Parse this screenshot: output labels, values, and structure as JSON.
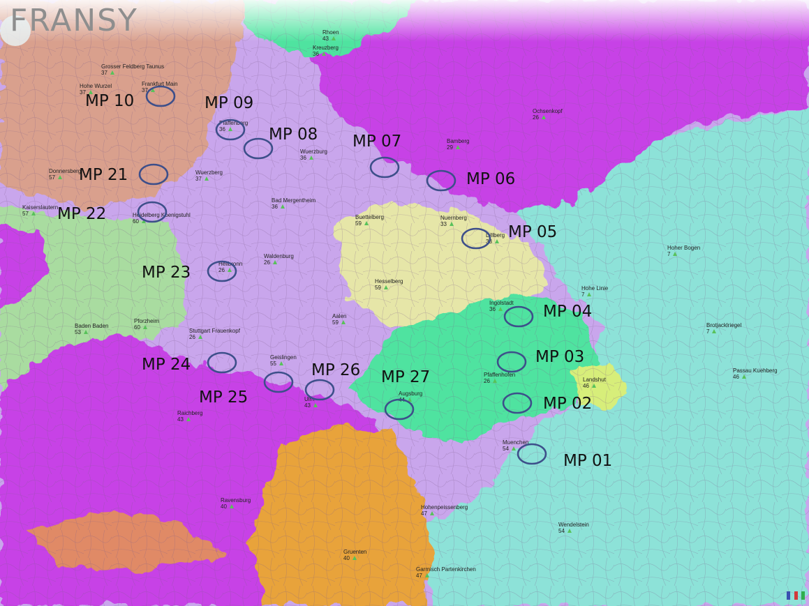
{
  "app": {
    "brand": "FRANSY"
  },
  "colors": {
    "violet_zone": "#c9a6ec",
    "magenta_zone": "#c742e6",
    "cyan_zone": "#8de2d8",
    "green_zone": "#4fe3a0",
    "yellow_zone": "#e6e6a8",
    "orange_zone": "#e8a33b",
    "salmon_zone": "#d9a08d",
    "lightgreen_zone": "#a9dca0",
    "marker_ring": "#3d4f8a",
    "site_triangle": "#58c25a"
  },
  "measure_points": [
    {
      "id": "mp10",
      "label": "MP 10"
    },
    {
      "id": "mp09",
      "label": "MP 09"
    },
    {
      "id": "mp08",
      "label": "MP 08"
    },
    {
      "id": "mp07",
      "label": "MP 07"
    },
    {
      "id": "mp06",
      "label": "MP 06"
    },
    {
      "id": "mp21",
      "label": "MP 21"
    },
    {
      "id": "mp22",
      "label": "MP 22"
    },
    {
      "id": "mp05",
      "label": "MP 05"
    },
    {
      "id": "mp23",
      "label": "MP 23"
    },
    {
      "id": "mp04",
      "label": "MP 04"
    },
    {
      "id": "mp24",
      "label": "MP 24"
    },
    {
      "id": "mp03",
      "label": "MP 03"
    },
    {
      "id": "mp26",
      "label": "MP 26"
    },
    {
      "id": "mp27",
      "label": "MP 27"
    },
    {
      "id": "mp25",
      "label": "MP 25"
    },
    {
      "id": "mp02",
      "label": "MP 02"
    },
    {
      "id": "mp01",
      "label": "MP 01"
    }
  ],
  "sites": [
    {
      "id": "rhoen",
      "name": "Rhoen",
      "ch": "43"
    },
    {
      "id": "kreuzberg",
      "name": "Kreuzberg",
      "ch": "36"
    },
    {
      "id": "feldberg",
      "name": "Grosser Feldberg Taunus",
      "ch": "37"
    },
    {
      "id": "frankfurt",
      "name": "Frankfurt Main",
      "ch": "37"
    },
    {
      "id": "wurzel",
      "name": "Hohe Wurzel",
      "ch": "37"
    },
    {
      "id": "ochsenkopf",
      "name": "Ochsenkopf",
      "ch": "26"
    },
    {
      "id": "pfaffenberg",
      "name": "Pfaffenberg",
      "ch": "36"
    },
    {
      "id": "bamberg",
      "name": "Bamberg",
      "ch": "29"
    },
    {
      "id": "wuerzburg",
      "name": "Wuerzburg",
      "ch": "36"
    },
    {
      "id": "donnersberg",
      "name": "Donnersberg",
      "ch": "57"
    },
    {
      "id": "wuerzberg",
      "name": "Wuerzberg",
      "ch": "37"
    },
    {
      "id": "mergentheim",
      "name": "Bad Mergentheim",
      "ch": "36"
    },
    {
      "id": "kaiserslautern",
      "name": "Kaiserslautern",
      "ch": "57"
    },
    {
      "id": "koenigstuhl",
      "name": "Heidelberg Koenigstuhl",
      "ch": "60"
    },
    {
      "id": "buettelberg",
      "name": "Buettelberg",
      "ch": "59"
    },
    {
      "id": "nuernberg",
      "name": "Nuernberg",
      "ch": "33"
    },
    {
      "id": "dillberg",
      "name": "Dillberg",
      "ch": "33"
    },
    {
      "id": "hoherbogen",
      "name": "Hoher Bogen",
      "ch": "7"
    },
    {
      "id": "heilbronn",
      "name": "Heilbronn",
      "ch": "26"
    },
    {
      "id": "waldenburg",
      "name": "Waldenburg",
      "ch": "26"
    },
    {
      "id": "hesselberg",
      "name": "Hesselberg",
      "ch": "59"
    },
    {
      "id": "hoheliste",
      "name": "Hohe Linie",
      "ch": "7"
    },
    {
      "id": "badenbaden",
      "name": "Baden Baden",
      "ch": "53"
    },
    {
      "id": "pforzheim",
      "name": "Pforzheim",
      "ch": "60"
    },
    {
      "id": "aalen",
      "name": "Aalen",
      "ch": "59"
    },
    {
      "id": "ingolstadt",
      "name": "Ingolstadt",
      "ch": "36"
    },
    {
      "id": "brotjacklriegel",
      "name": "Brotjacklriegel",
      "ch": "7"
    },
    {
      "id": "stuttgart",
      "name": "Stuttgart Frauenkopf",
      "ch": "26"
    },
    {
      "id": "geislingen",
      "name": "Geislingen",
      "ch": "55"
    },
    {
      "id": "landshut",
      "name": "Landshut",
      "ch": "46"
    },
    {
      "id": "passau",
      "name": "Passau Kuehberg",
      "ch": "46"
    },
    {
      "id": "ulm",
      "name": "Ulm",
      "ch": "43"
    },
    {
      "id": "augsburg",
      "name": "Augsburg",
      "ch": "44"
    },
    {
      "id": "pfaffenhofen",
      "name": "Pfaffenhofen",
      "ch": "26"
    },
    {
      "id": "raichberg",
      "name": "Raichberg",
      "ch": "43"
    },
    {
      "id": "muenchen",
      "name": "Muenchen",
      "ch": "54"
    },
    {
      "id": "ravensburg",
      "name": "Ravensburg",
      "ch": "40"
    },
    {
      "id": "hohenpeissenberg",
      "name": "Hohenpeissenberg",
      "ch": "47"
    },
    {
      "id": "wendelstein",
      "name": "Wendelstein",
      "ch": "54"
    },
    {
      "id": "gruenten",
      "name": "Gruenten",
      "ch": "40"
    },
    {
      "id": "garmisch",
      "name": "Garmisch Partenkirchen",
      "ch": "47"
    }
  ]
}
